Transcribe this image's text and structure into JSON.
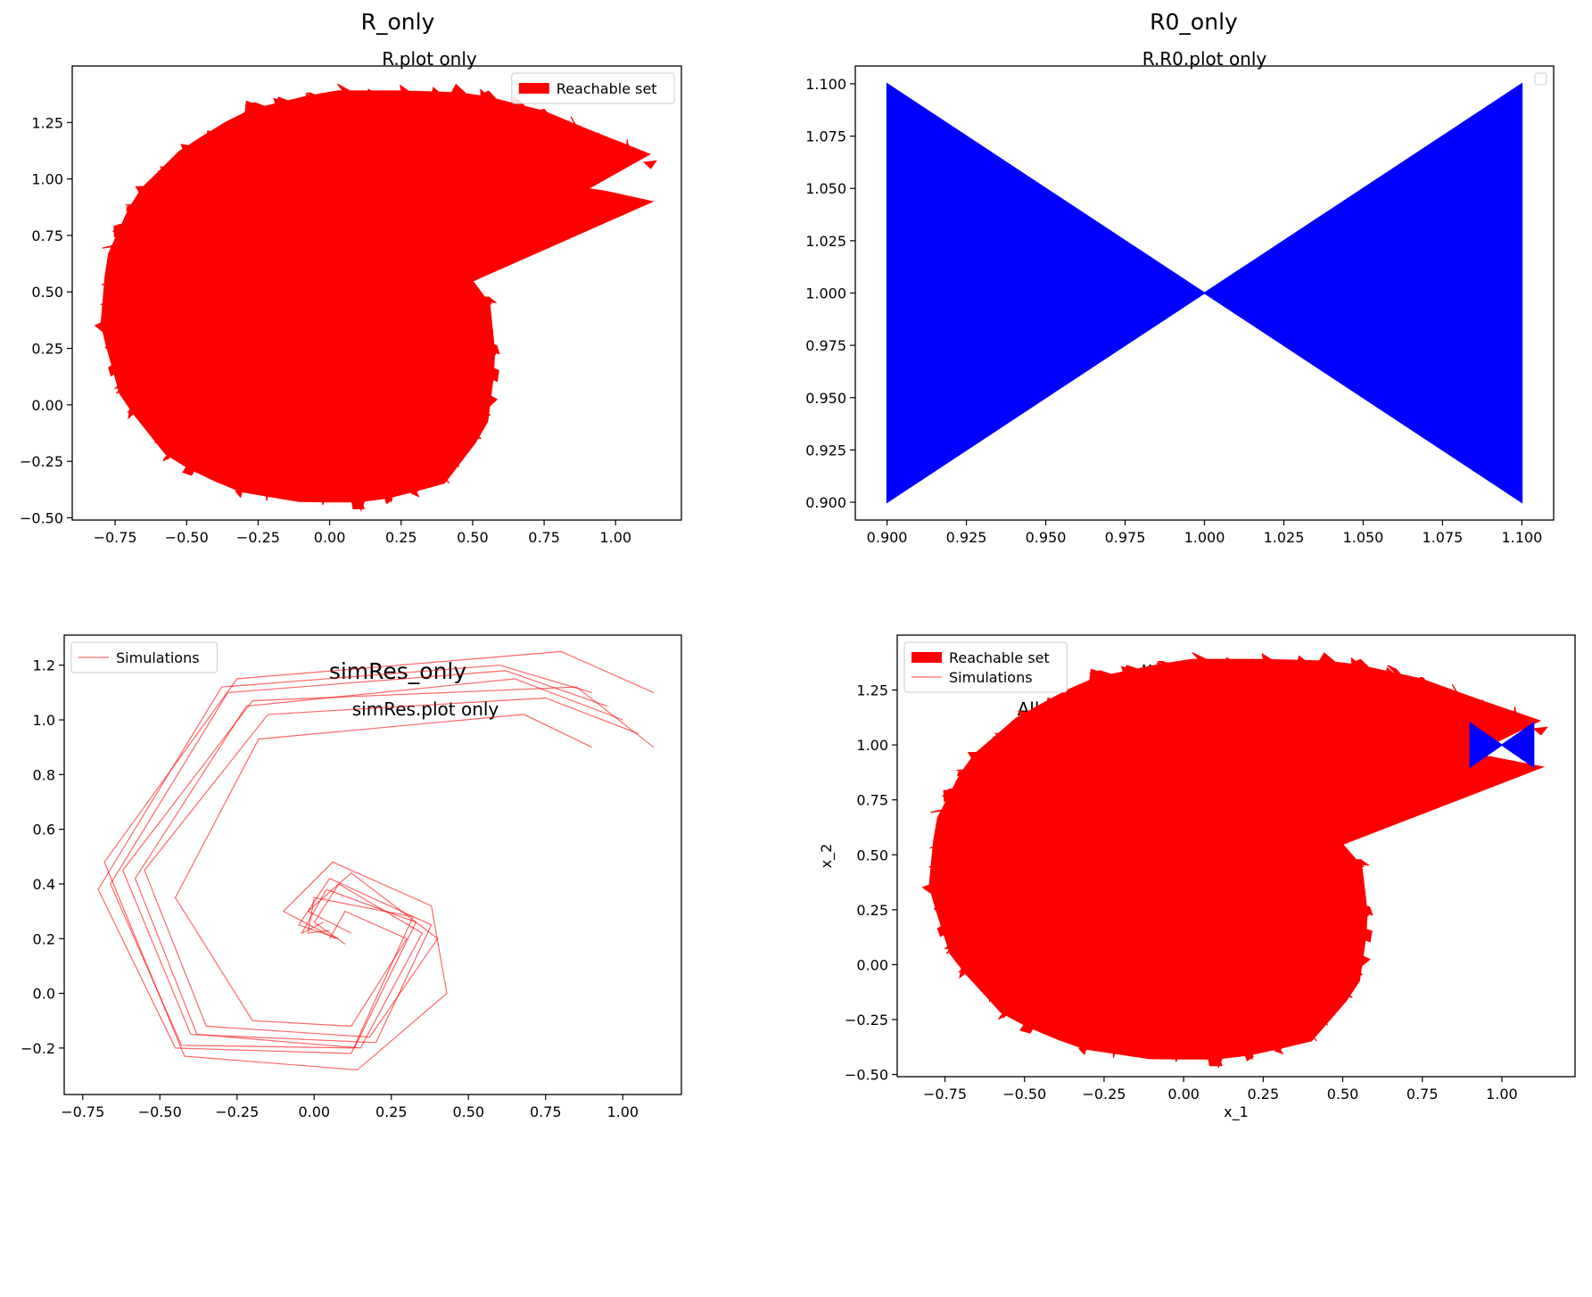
{
  "chart_data": [
    {
      "id": "r_only",
      "type": "area",
      "figure_title": "R_only",
      "title": "R.plot only",
      "xlabel": "",
      "ylabel": "",
      "xlim": [
        -0.9,
        1.23
      ],
      "ylim": [
        -0.51,
        1.5
      ],
      "xticks": [
        -0.75,
        -0.5,
        -0.25,
        0.0,
        0.25,
        0.5,
        0.75,
        1.0
      ],
      "xtick_labels": [
        "−0.75",
        "−0.50",
        "−0.25",
        "0.00",
        "0.25",
        "0.50",
        "0.75",
        "1.00"
      ],
      "yticks": [
        -0.5,
        -0.25,
        0.0,
        0.25,
        0.5,
        0.75,
        1.0,
        1.25
      ],
      "ytick_labels": [
        "−0.50",
        "−0.25",
        "0.00",
        "0.25",
        "0.50",
        "0.75",
        "1.00",
        "1.25"
      ],
      "legend": {
        "position": "upper-right",
        "entries": [
          {
            "label": "Reachable set",
            "style": "patch",
            "color": "#ff0000"
          }
        ]
      },
      "series": [
        {
          "name": "Reachable set",
          "kind": "reach",
          "color": "#ff0000",
          "outer": [
            [
              1.12,
              1.11
            ],
            [
              0.9,
              1.22
            ],
            [
              0.75,
              1.3
            ],
            [
              0.5,
              1.38
            ],
            [
              0.25,
              1.39
            ],
            [
              0.0,
              1.39
            ],
            [
              -0.3,
              1.3
            ],
            [
              -0.52,
              1.13
            ],
            [
              -0.68,
              0.93
            ],
            [
              -0.78,
              0.65
            ],
            [
              -0.8,
              0.35
            ],
            [
              -0.73,
              0.03
            ],
            [
              -0.56,
              -0.24
            ],
            [
              -0.33,
              -0.38
            ],
            [
              -0.1,
              -0.43
            ],
            [
              0.15,
              -0.43
            ],
            [
              0.4,
              -0.35
            ],
            [
              0.55,
              -0.1
            ],
            [
              0.58,
              0.2
            ],
            [
              0.56,
              0.45
            ],
            [
              0.45,
              0.63
            ],
            [
              0.25,
              0.66
            ],
            [
              0.0,
              0.67
            ],
            [
              -0.2,
              0.66
            ],
            [
              -0.3,
              0.55
            ],
            [
              -0.3,
              0.1
            ]
          ],
          "inner": [
            [
              -0.3,
              0.1
            ],
            [
              -0.35,
              0.3
            ],
            [
              -0.42,
              0.45
            ],
            [
              -0.35,
              0.65
            ],
            [
              -0.2,
              0.8
            ],
            [
              0.0,
              0.92
            ],
            [
              0.25,
              1.0
            ],
            [
              0.5,
              1.02
            ],
            [
              0.75,
              0.98
            ],
            [
              0.95,
              0.95
            ],
            [
              1.13,
              0.9
            ]
          ]
        }
      ]
    },
    {
      "id": "r0_only",
      "type": "area",
      "figure_title": "R0_only",
      "title": "R.R0.plot only",
      "xlabel": "",
      "ylabel": "",
      "xlim": [
        0.89,
        1.11
      ],
      "ylim": [
        0.8915,
        1.1085
      ],
      "xticks": [
        0.9,
        0.925,
        0.95,
        0.975,
        1.0,
        1.025,
        1.05,
        1.075,
        1.1
      ],
      "xtick_labels": [
        "0.900",
        "0.925",
        "0.950",
        "0.975",
        "1.000",
        "1.025",
        "1.050",
        "1.075",
        "1.100"
      ],
      "yticks": [
        0.9,
        0.925,
        0.95,
        0.975,
        1.0,
        1.025,
        1.05,
        1.075,
        1.1
      ],
      "ytick_labels": [
        "0.900",
        "0.925",
        "0.950",
        "0.975",
        "1.000",
        "1.025",
        "1.050",
        "1.075",
        "1.100"
      ],
      "legend": {
        "position": "upper-right",
        "entries": []
      },
      "series": [
        {
          "kind": "polygon",
          "color": "#0000ff",
          "points": [
            [
              0.9,
              0.9
            ],
            [
              0.9,
              1.1
            ],
            [
              1.1,
              0.9
            ],
            [
              1.1,
              1.1
            ]
          ]
        }
      ]
    },
    {
      "id": "simres_only",
      "type": "line",
      "figure_title": "simRes_only",
      "title": "simRes.plot only",
      "xlabel": "",
      "ylabel": "",
      "xlim": [
        -0.81,
        1.19
      ],
      "ylim": [
        -0.37,
        1.31
      ],
      "xticks": [
        -0.75,
        -0.5,
        -0.25,
        0.0,
        0.25,
        0.5,
        0.75,
        1.0
      ],
      "xtick_labels": [
        "−0.75",
        "−0.50",
        "−0.25",
        "0.00",
        "0.25",
        "0.50",
        "0.75",
        "1.00"
      ],
      "yticks": [
        -0.2,
        0.0,
        0.2,
        0.4,
        0.6,
        0.8,
        1.0,
        1.2
      ],
      "ytick_labels": [
        "−0.2",
        "0.0",
        "0.2",
        "0.4",
        "0.6",
        "0.8",
        "1.0",
        "1.2"
      ],
      "legend": {
        "position": "upper-left",
        "entries": [
          {
            "label": "Simulations",
            "style": "line",
            "color": "#ff0000"
          }
        ]
      },
      "series": [
        {
          "name": "Simulations",
          "kind": "sims",
          "color": "#ff0000",
          "runs": [
            {
              "x0": [
                0.9,
                0.9
              ],
              "pts": [
                [
                  0.9,
                  0.9
                ],
                [
                  0.68,
                  1.02
                ],
                [
                  -0.18,
                  0.93
                ],
                [
                  -0.45,
                  0.35
                ],
                [
                  -0.2,
                  -0.1
                ],
                [
                  0.12,
                  -0.12
                ],
                [
                  0.3,
                  0.2
                ],
                [
                  0.1,
                  0.3
                ],
                [
                  0.05,
                  0.2
                ],
                [
                  0.06,
                  0.22
                ]
              ]
            },
            {
              "x0": [
                0.9,
                1.1
              ],
              "pts": [
                [
                  0.9,
                  1.1
                ],
                [
                  0.6,
                  1.2
                ],
                [
                  -0.3,
                  1.12
                ],
                [
                  -0.7,
                  0.38
                ],
                [
                  -0.45,
                  -0.2
                ],
                [
                  0.12,
                  -0.22
                ],
                [
                  0.32,
                  0.28
                ],
                [
                  0.0,
                  0.35
                ],
                [
                  -0.02,
                  0.22
                ],
                [
                  0.05,
                  0.23
                ]
              ]
            },
            {
              "x0": [
                1.1,
                0.9
              ],
              "pts": [
                [
                  1.1,
                  0.9
                ],
                [
                  0.85,
                  1.12
                ],
                [
                  -0.2,
                  1.07
                ],
                [
                  -0.62,
                  0.45
                ],
                [
                  -0.4,
                  -0.15
                ],
                [
                  0.2,
                  -0.18
                ],
                [
                  0.38,
                  0.25
                ],
                [
                  0.05,
                  0.42
                ],
                [
                  -0.05,
                  0.25
                ],
                [
                  0.08,
                  0.2
                ]
              ]
            },
            {
              "x0": [
                1.1,
                1.1
              ],
              "pts": [
                [
                  1.1,
                  1.1
                ],
                [
                  0.8,
                  1.25
                ],
                [
                  -0.25,
                  1.15
                ],
                [
                  -0.68,
                  0.48
                ],
                [
                  -0.42,
                  -0.23
                ],
                [
                  0.14,
                  -0.28
                ],
                [
                  0.43,
                  0.0
                ],
                [
                  0.38,
                  0.32
                ],
                [
                  0.06,
                  0.48
                ],
                [
                  -0.1,
                  0.3
                ],
                [
                  0.07,
                  0.2
                ]
              ]
            },
            {
              "x0": [
                1.0,
                1.0
              ],
              "pts": [
                [
                  1.0,
                  1.0
                ],
                [
                  0.65,
                  1.15
                ],
                [
                  -0.22,
                  1.05
                ],
                [
                  -0.58,
                  0.42
                ],
                [
                  -0.38,
                  -0.15
                ],
                [
                  0.15,
                  -0.2
                ],
                [
                  0.35,
                  0.22
                ],
                [
                  0.08,
                  0.4
                ],
                [
                  0.0,
                  0.26
                ],
                [
                  0.1,
                  0.18
                ]
              ]
            },
            {
              "x0": [
                0.95,
                1.05
              ],
              "pts": [
                [
                  0.95,
                  1.05
                ],
                [
                  0.62,
                  1.18
                ],
                [
                  -0.28,
                  1.1
                ],
                [
                  -0.66,
                  0.4
                ],
                [
                  -0.43,
                  -0.19
                ],
                [
                  0.13,
                  -0.2
                ],
                [
                  0.33,
                  0.26
                ],
                [
                  0.04,
                  0.38
                ],
                [
                  -0.04,
                  0.22
                ],
                [
                  0.03,
                  0.26
                ]
              ]
            },
            {
              "x0": [
                1.05,
                0.95
              ],
              "pts": [
                [
                  1.05,
                  0.95
                ],
                [
                  0.75,
                  1.08
                ],
                [
                  -0.15,
                  1.02
                ],
                [
                  -0.55,
                  0.45
                ],
                [
                  -0.35,
                  -0.12
                ],
                [
                  0.18,
                  -0.16
                ],
                [
                  0.4,
                  0.2
                ],
                [
                  0.12,
                  0.44
                ],
                [
                  -0.02,
                  0.3
                ],
                [
                  0.12,
                  0.22
                ]
              ]
            }
          ]
        }
      ]
    },
    {
      "id": "all_together",
      "type": "area",
      "figure_title": "all_together",
      "title": "All components together (Current Python Output)",
      "xlabel": "x_1",
      "ylabel": "x_2",
      "xlim": [
        -0.9,
        1.23
      ],
      "ylim": [
        -0.51,
        1.5
      ],
      "xticks": [
        -0.75,
        -0.5,
        -0.25,
        0.0,
        0.25,
        0.5,
        0.75,
        1.0
      ],
      "xtick_labels": [
        "−0.75",
        "−0.50",
        "−0.25",
        "0.00",
        "0.25",
        "0.50",
        "0.75",
        "1.00"
      ],
      "yticks": [
        -0.5,
        -0.25,
        0.0,
        0.25,
        0.5,
        0.75,
        1.0,
        1.25
      ],
      "ytick_labels": [
        "−0.50",
        "−0.25",
        "0.00",
        "0.25",
        "0.50",
        "0.75",
        "1.00",
        "1.25"
      ],
      "legend": {
        "position": "upper-left",
        "entries": [
          {
            "label": "Reachable set",
            "style": "patch",
            "color": "#ff0000"
          },
          {
            "label": "Simulations",
            "style": "line",
            "color": "#ff0000"
          }
        ]
      },
      "series": [
        {
          "name": "Reachable set",
          "kind": "reach",
          "color": "#ff0000",
          "outer": [
            [
              1.12,
              1.11
            ],
            [
              0.9,
              1.22
            ],
            [
              0.75,
              1.3
            ],
            [
              0.5,
              1.38
            ],
            [
              0.25,
              1.39
            ],
            [
              0.0,
              1.39
            ],
            [
              -0.3,
              1.3
            ],
            [
              -0.52,
              1.13
            ],
            [
              -0.68,
              0.93
            ],
            [
              -0.78,
              0.65
            ],
            [
              -0.8,
              0.35
            ],
            [
              -0.73,
              0.03
            ],
            [
              -0.56,
              -0.24
            ],
            [
              -0.33,
              -0.38
            ],
            [
              -0.1,
              -0.43
            ],
            [
              0.15,
              -0.43
            ],
            [
              0.4,
              -0.35
            ],
            [
              0.55,
              -0.1
            ],
            [
              0.58,
              0.2
            ],
            [
              0.56,
              0.45
            ],
            [
              0.45,
              0.63
            ],
            [
              0.25,
              0.66
            ],
            [
              0.0,
              0.67
            ],
            [
              -0.2,
              0.66
            ],
            [
              -0.3,
              0.55
            ],
            [
              -0.3,
              0.1
            ]
          ],
          "inner": [
            [
              -0.3,
              0.1
            ],
            [
              -0.35,
              0.3
            ],
            [
              -0.42,
              0.45
            ],
            [
              -0.35,
              0.65
            ],
            [
              -0.2,
              0.8
            ],
            [
              0.0,
              0.92
            ],
            [
              0.25,
              1.0
            ],
            [
              0.5,
              1.02
            ],
            [
              0.75,
              0.98
            ],
            [
              0.95,
              0.95
            ],
            [
              1.13,
              0.9
            ]
          ]
        },
        {
          "name": "Simulations",
          "kind": "lines",
          "color": "#ff0000",
          "lines": [
            [
              [
                0.9,
                0.9
              ],
              [
                0.68,
                1.02
              ],
              [
                -0.18,
                0.93
              ],
              [
                -0.45,
                0.35
              ],
              [
                -0.3,
                0.25
              ]
            ],
            [
              [
                1.1,
                1.1
              ],
              [
                0.8,
                1.05
              ],
              [
                0.1,
                1.0
              ],
              [
                -0.3,
                0.6
              ]
            ],
            [
              [
                1.0,
                1.0
              ],
              [
                0.6,
                1.02
              ],
              [
                -0.1,
                0.9
              ],
              [
                -0.38,
                0.45
              ]
            ],
            [
              [
                0.95,
                1.05
              ],
              [
                0.3,
                1.05
              ],
              [
                -0.25,
                0.9
              ]
            ]
          ]
        },
        {
          "kind": "polygon",
          "color": "#0000ff",
          "points": [
            [
              0.9,
              0.9
            ],
            [
              0.9,
              1.1
            ],
            [
              1.1,
              0.9
            ],
            [
              1.1,
              1.1
            ]
          ]
        }
      ]
    }
  ]
}
